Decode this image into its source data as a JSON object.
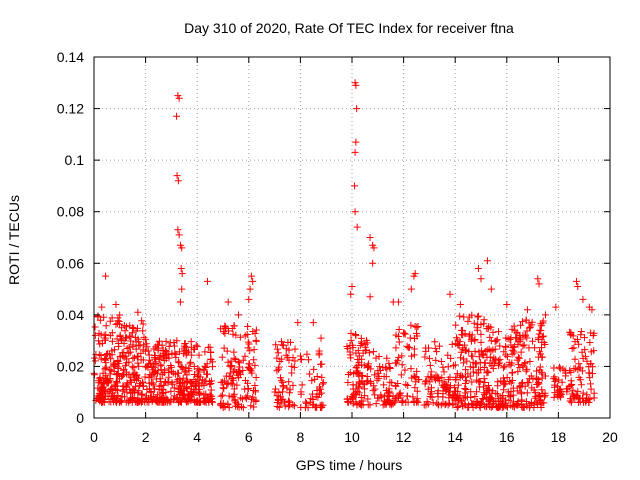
{
  "chart_data": {
    "type": "scatter",
    "title": "Day 310 of 2020, Rate Of TEC Index for receiver ftna",
    "xlabel": "GPS time / hours",
    "ylabel": "ROTI / TECUs",
    "xlim": [
      0,
      20
    ],
    "ylim": [
      0,
      0.14
    ],
    "xticks": [
      "0",
      "2",
      "4",
      "6",
      "8",
      "10",
      "12",
      "14",
      "16",
      "18",
      "20"
    ],
    "yticks": [
      "0",
      "0.02",
      "0.04",
      "0.06",
      "0.08",
      "0.1",
      "0.12",
      "0.14"
    ],
    "grid": true,
    "marker": "plus",
    "series": [
      {
        "name": "ROTI",
        "color": "#ff0000",
        "density": [
          {
            "x": [
              0.0,
              1.0
            ],
            "y": [
              0.006,
              0.04
            ],
            "count": 160
          },
          {
            "x": [
              1.0,
              2.0
            ],
            "y": [
              0.006,
              0.038
            ],
            "count": 140
          },
          {
            "x": [
              2.0,
              3.0
            ],
            "y": [
              0.006,
              0.03
            ],
            "count": 140
          },
          {
            "x": [
              3.0,
              4.0
            ],
            "y": [
              0.006,
              0.03
            ],
            "count": 130
          },
          {
            "x": [
              4.0,
              4.6
            ],
            "y": [
              0.006,
              0.028
            ],
            "count": 70
          },
          {
            "x": [
              4.9,
              6.3
            ],
            "y": [
              0.004,
              0.036
            ],
            "count": 130
          },
          {
            "x": [
              7.0,
              7.8
            ],
            "y": [
              0.004,
              0.03
            ],
            "count": 60
          },
          {
            "x": [
              8.0,
              8.9
            ],
            "y": [
              0.004,
              0.028
            ],
            "count": 50
          },
          {
            "x": [
              9.8,
              10.6
            ],
            "y": [
              0.005,
              0.034
            ],
            "count": 90
          },
          {
            "x": [
              10.6,
              11.6
            ],
            "y": [
              0.005,
              0.026
            ],
            "count": 70
          },
          {
            "x": [
              11.6,
              12.6
            ],
            "y": [
              0.006,
              0.036
            ],
            "count": 70
          },
          {
            "x": [
              12.8,
              14.0
            ],
            "y": [
              0.005,
              0.03
            ],
            "count": 90
          },
          {
            "x": [
              14.0,
              15.2
            ],
            "y": [
              0.004,
              0.04
            ],
            "count": 150
          },
          {
            "x": [
              15.2,
              16.4
            ],
            "y": [
              0.004,
              0.036
            ],
            "count": 150
          },
          {
            "x": [
              16.4,
              17.5
            ],
            "y": [
              0.004,
              0.038
            ],
            "count": 130
          },
          {
            "x": [
              17.8,
              18.4
            ],
            "y": [
              0.008,
              0.02
            ],
            "count": 35
          },
          {
            "x": [
              18.4,
              19.4
            ],
            "y": [
              0.006,
              0.034
            ],
            "count": 80
          }
        ],
        "points": [
          {
            "x": 0.45,
            "y": 0.055
          },
          {
            "x": 0.3,
            "y": 0.043
          },
          {
            "x": 0.85,
            "y": 0.044
          },
          {
            "x": 1.7,
            "y": 0.041
          },
          {
            "x": 3.25,
            "y": 0.125
          },
          {
            "x": 3.3,
            "y": 0.124
          },
          {
            "x": 3.2,
            "y": 0.117
          },
          {
            "x": 3.22,
            "y": 0.094
          },
          {
            "x": 3.27,
            "y": 0.092
          },
          {
            "x": 3.25,
            "y": 0.073
          },
          {
            "x": 3.3,
            "y": 0.071
          },
          {
            "x": 3.35,
            "y": 0.067
          },
          {
            "x": 3.4,
            "y": 0.066
          },
          {
            "x": 3.38,
            "y": 0.058
          },
          {
            "x": 3.42,
            "y": 0.056
          },
          {
            "x": 3.4,
            "y": 0.05
          },
          {
            "x": 3.35,
            "y": 0.045
          },
          {
            "x": 4.4,
            "y": 0.053
          },
          {
            "x": 5.2,
            "y": 0.045
          },
          {
            "x": 5.6,
            "y": 0.04
          },
          {
            "x": 6.1,
            "y": 0.055
          },
          {
            "x": 6.15,
            "y": 0.053
          },
          {
            "x": 6.05,
            "y": 0.05
          },
          {
            "x": 6.0,
            "y": 0.046
          },
          {
            "x": 7.9,
            "y": 0.037
          },
          {
            "x": 8.5,
            "y": 0.037
          },
          {
            "x": 8.8,
            "y": 0.031
          },
          {
            "x": 10.12,
            "y": 0.13
          },
          {
            "x": 10.15,
            "y": 0.129
          },
          {
            "x": 10.18,
            "y": 0.12
          },
          {
            "x": 10.15,
            "y": 0.107
          },
          {
            "x": 10.12,
            "y": 0.103
          },
          {
            "x": 10.1,
            "y": 0.09
          },
          {
            "x": 10.12,
            "y": 0.08
          },
          {
            "x": 10.2,
            "y": 0.074
          },
          {
            "x": 10.0,
            "y": 0.051
          },
          {
            "x": 9.95,
            "y": 0.048
          },
          {
            "x": 10.7,
            "y": 0.07
          },
          {
            "x": 10.8,
            "y": 0.067
          },
          {
            "x": 10.85,
            "y": 0.066
          },
          {
            "x": 10.8,
            "y": 0.06
          },
          {
            "x": 10.7,
            "y": 0.047
          },
          {
            "x": 11.6,
            "y": 0.045
          },
          {
            "x": 11.8,
            "y": 0.045
          },
          {
            "x": 12.4,
            "y": 0.055
          },
          {
            "x": 12.45,
            "y": 0.056
          },
          {
            "x": 12.3,
            "y": 0.05
          },
          {
            "x": 13.8,
            "y": 0.048
          },
          {
            "x": 14.2,
            "y": 0.044
          },
          {
            "x": 14.9,
            "y": 0.058
          },
          {
            "x": 15.0,
            "y": 0.054
          },
          {
            "x": 15.25,
            "y": 0.061
          },
          {
            "x": 15.4,
            "y": 0.05
          },
          {
            "x": 16.0,
            "y": 0.044
          },
          {
            "x": 17.2,
            "y": 0.054
          },
          {
            "x": 17.25,
            "y": 0.052
          },
          {
            "x": 16.8,
            "y": 0.042
          },
          {
            "x": 17.5,
            "y": 0.04
          },
          {
            "x": 17.9,
            "y": 0.043
          },
          {
            "x": 18.7,
            "y": 0.053
          },
          {
            "x": 18.75,
            "y": 0.051
          },
          {
            "x": 18.95,
            "y": 0.046
          },
          {
            "x": 19.2,
            "y": 0.043
          },
          {
            "x": 19.3,
            "y": 0.042
          },
          {
            "x": 19.25,
            "y": 0.033
          },
          {
            "x": 19.35,
            "y": 0.032
          }
        ]
      }
    ]
  }
}
